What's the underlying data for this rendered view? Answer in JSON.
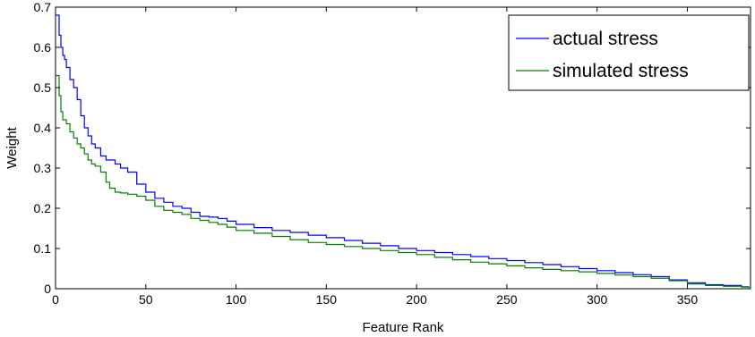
{
  "chart_data": {
    "type": "line",
    "title": "",
    "xlabel": "Feature Rank",
    "ylabel": "Weight",
    "xlim": [
      0,
      385
    ],
    "ylim": [
      0,
      0.7
    ],
    "xticks": [
      0,
      50,
      100,
      150,
      200,
      250,
      300,
      350
    ],
    "yticks": [
      0,
      0.1,
      0.2,
      0.3,
      0.4,
      0.5,
      0.6,
      0.7
    ],
    "xtick_labels": [
      "0",
      "50",
      "100",
      "150",
      "200",
      "250",
      "300",
      "350"
    ],
    "ytick_labels": [
      "0",
      "0.1",
      "0.2",
      "0.3",
      "0.4",
      "0.5",
      "0.6",
      "0.7"
    ],
    "grid": false,
    "legend_position": "top-right",
    "series": [
      {
        "name": "actual stress",
        "color": "#0000ff",
        "x": [
          1,
          2,
          3,
          4,
          5,
          6,
          8,
          10,
          12,
          14,
          16,
          18,
          20,
          22,
          25,
          28,
          30,
          33,
          36,
          40,
          45,
          50,
          55,
          60,
          65,
          70,
          75,
          80,
          85,
          90,
          95,
          100,
          110,
          120,
          130,
          140,
          150,
          160,
          170,
          180,
          190,
          200,
          210,
          220,
          230,
          240,
          250,
          260,
          270,
          280,
          290,
          300,
          310,
          320,
          330,
          340,
          350,
          360,
          370,
          380,
          384
        ],
        "y": [
          0.68,
          0.63,
          0.6,
          0.58,
          0.57,
          0.55,
          0.52,
          0.5,
          0.47,
          0.43,
          0.4,
          0.38,
          0.36,
          0.35,
          0.33,
          0.32,
          0.32,
          0.31,
          0.3,
          0.29,
          0.26,
          0.24,
          0.225,
          0.215,
          0.205,
          0.2,
          0.19,
          0.18,
          0.178,
          0.175,
          0.168,
          0.16,
          0.152,
          0.145,
          0.14,
          0.133,
          0.127,
          0.12,
          0.113,
          0.107,
          0.1,
          0.095,
          0.09,
          0.085,
          0.08,
          0.075,
          0.07,
          0.065,
          0.06,
          0.055,
          0.05,
          0.045,
          0.04,
          0.035,
          0.03,
          0.022,
          0.015,
          0.01,
          0.008,
          0.005,
          0.003
        ]
      },
      {
        "name": "simulated stress",
        "color": "#008000",
        "x": [
          1,
          2,
          3,
          4,
          6,
          8,
          10,
          12,
          14,
          16,
          18,
          20,
          22,
          25,
          28,
          30,
          33,
          36,
          40,
          45,
          50,
          55,
          60,
          65,
          70,
          75,
          80,
          85,
          90,
          95,
          100,
          110,
          120,
          130,
          140,
          150,
          160,
          170,
          180,
          190,
          200,
          210,
          220,
          230,
          240,
          250,
          260,
          270,
          280,
          290,
          300,
          310,
          320,
          330,
          340,
          350,
          360,
          370,
          380,
          384
        ],
        "y": [
          0.53,
          0.48,
          0.44,
          0.42,
          0.41,
          0.39,
          0.375,
          0.36,
          0.35,
          0.335,
          0.32,
          0.31,
          0.305,
          0.29,
          0.265,
          0.25,
          0.24,
          0.238,
          0.235,
          0.23,
          0.22,
          0.205,
          0.195,
          0.19,
          0.185,
          0.175,
          0.17,
          0.165,
          0.16,
          0.153,
          0.145,
          0.138,
          0.13,
          0.122,
          0.115,
          0.11,
          0.105,
          0.1,
          0.095,
          0.09,
          0.085,
          0.078,
          0.072,
          0.066,
          0.062,
          0.057,
          0.052,
          0.048,
          0.045,
          0.042,
          0.038,
          0.034,
          0.03,
          0.026,
          0.02,
          0.012,
          0.008,
          0.006,
          0.004,
          0.002
        ]
      }
    ]
  }
}
